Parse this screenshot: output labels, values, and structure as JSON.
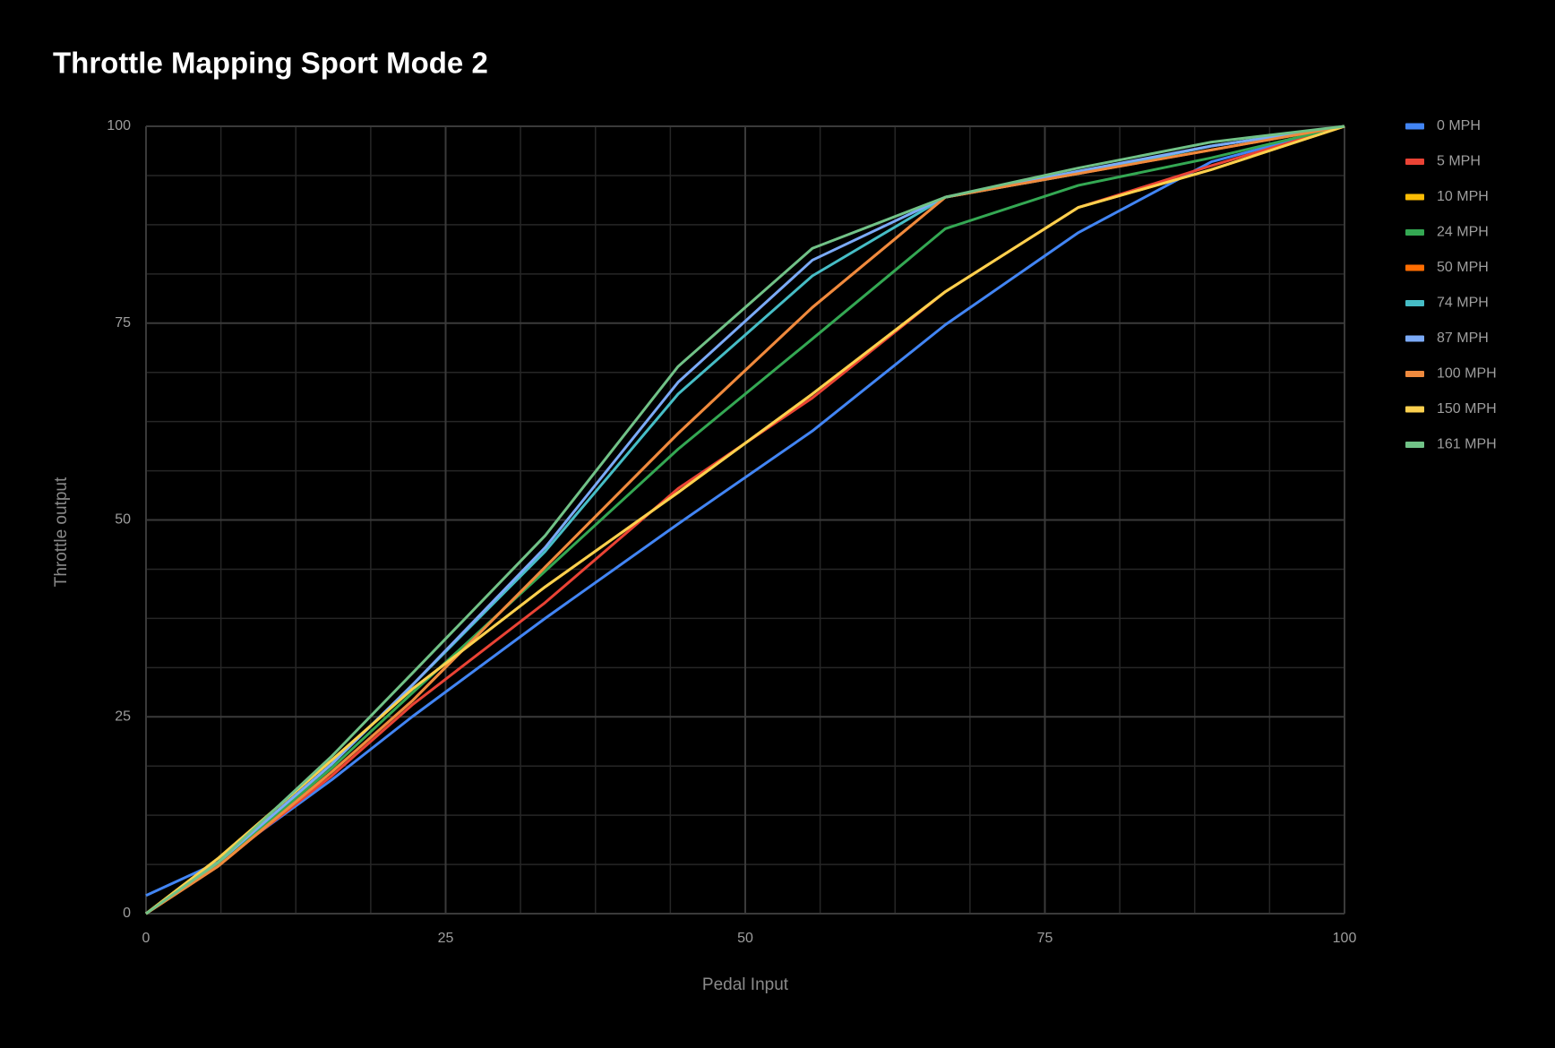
{
  "chart_data": {
    "type": "line",
    "title": "Throttle Mapping Sport Mode 2",
    "x_label": "Pedal Input",
    "y_label": "Throttle output",
    "x": [
      0,
      6,
      15.5,
      22.2,
      33.3,
      44.4,
      55.6,
      66.7,
      77.8,
      88.9,
      100
    ],
    "series": [
      {
        "name": "0 MPH",
        "color": "#4285f4",
        "values": [
          2.3,
          6.5,
          17,
          25,
          37.5,
          49.5,
          61.3,
          74.8,
          86.5,
          95.5,
          100
        ]
      },
      {
        "name": "5 MPH",
        "color": "#ea4335",
        "values": [
          0,
          6.2,
          17.5,
          26.5,
          39.5,
          54,
          65.5,
          79,
          89.7,
          95,
          100
        ]
      },
      {
        "name": "10 MPH",
        "color": "#fbbc04",
        "values": [
          0,
          7,
          19.5,
          28.5,
          41.5,
          53.5,
          66,
          79,
          89.7,
          94.5,
          100
        ]
      },
      {
        "name": "24 MPH",
        "color": "#34a853",
        "values": [
          0,
          6.3,
          18.5,
          28,
          43.5,
          59,
          73,
          87,
          92.5,
          96,
          100
        ]
      },
      {
        "name": "50 MPH",
        "color": "#ff6d01",
        "values": [
          0,
          6,
          18,
          27,
          44,
          61,
          77,
          91,
          94,
          97,
          100
        ]
      },
      {
        "name": "74 MPH",
        "color": "#46bdc6",
        "values": [
          0,
          6.5,
          19,
          29,
          46,
          66,
          81,
          91,
          94,
          97.5,
          100
        ]
      },
      {
        "name": "87 MPH",
        "color": "#7baaf7",
        "values": [
          0,
          6.5,
          19,
          29,
          46.5,
          67.5,
          83,
          91,
          94.3,
          97.5,
          100
        ]
      },
      {
        "name": "100 MPH",
        "color": "#ef8a3e",
        "values": [
          0,
          6,
          18,
          27,
          44,
          61,
          77,
          91,
          94,
          97,
          100
        ]
      },
      {
        "name": "150 MPH",
        "color": "#fcd04f",
        "values": [
          0,
          7,
          19.5,
          28.5,
          41.5,
          53.5,
          66,
          79,
          89.7,
          94.5,
          100
        ]
      },
      {
        "name": "161 MPH",
        "color": "#71c287",
        "values": [
          0,
          6.5,
          20,
          30.5,
          48,
          69.5,
          84.5,
          91,
          94.7,
          98,
          100
        ]
      }
    ],
    "xlim": [
      0,
      100
    ],
    "xticks": [
      0,
      25,
      50,
      75,
      100
    ],
    "ylim": [
      0,
      100
    ],
    "yticks": [
      0,
      25,
      50,
      75,
      100
    ],
    "grid": true,
    "minor_grid": true,
    "legend": "right"
  }
}
